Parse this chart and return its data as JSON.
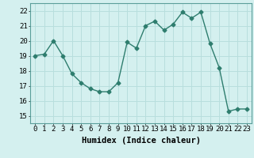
{
  "x": [
    0,
    1,
    2,
    3,
    4,
    5,
    6,
    7,
    8,
    9,
    10,
    11,
    12,
    13,
    14,
    15,
    16,
    17,
    18,
    19,
    20,
    21,
    22,
    23
  ],
  "y": [
    19.0,
    19.1,
    20.0,
    19.0,
    17.8,
    17.2,
    16.8,
    16.6,
    16.6,
    17.2,
    19.9,
    19.5,
    21.0,
    21.3,
    20.7,
    21.1,
    21.9,
    21.5,
    21.9,
    19.8,
    18.2,
    15.3,
    15.45,
    15.45
  ],
  "line_color": "#2e7d6e",
  "marker": "D",
  "marker_size": 2.5,
  "bg_color": "#d4f0ef",
  "grid_color": "#b8dedd",
  "xlabel": "Humidex (Indice chaleur)",
  "xlabel_fontsize": 7.5,
  "xlabel_weight": "bold",
  "ylim": [
    14.5,
    22.5
  ],
  "xlim": [
    -0.5,
    23.5
  ],
  "yticks": [
    15,
    16,
    17,
    18,
    19,
    20,
    21,
    22
  ],
  "xticks": [
    0,
    1,
    2,
    3,
    4,
    5,
    6,
    7,
    8,
    9,
    10,
    11,
    12,
    13,
    14,
    15,
    16,
    17,
    18,
    19,
    20,
    21,
    22,
    23
  ],
  "tick_fontsize": 6.5
}
